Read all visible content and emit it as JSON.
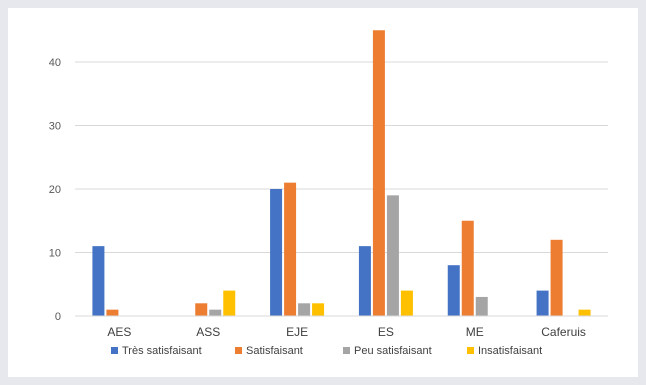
{
  "chart_data": {
    "type": "bar",
    "categories": [
      "AES",
      "ASS",
      "EJE",
      "ES",
      "ME",
      "Caferuis"
    ],
    "series": [
      {
        "name": "Très satisfaisant",
        "color": "#4472c4",
        "values": [
          11,
          0,
          20,
          11,
          8,
          4
        ]
      },
      {
        "name": "Satisfaisant",
        "color": "#ed7d31",
        "values": [
          1,
          2,
          21,
          45,
          15,
          12
        ]
      },
      {
        "name": "Peu satisfaisant",
        "color": "#a5a5a5",
        "values": [
          0,
          1,
          2,
          19,
          3,
          0
        ]
      },
      {
        "name": "Insatisfaisant",
        "color": "#ffc000",
        "values": [
          0,
          4,
          2,
          4,
          0,
          1
        ]
      }
    ],
    "yticks": [
      "0",
      "10",
      "20",
      "30",
      "40"
    ],
    "ylim": [
      0,
      45
    ],
    "grid": true,
    "legend_position": "bottom"
  }
}
